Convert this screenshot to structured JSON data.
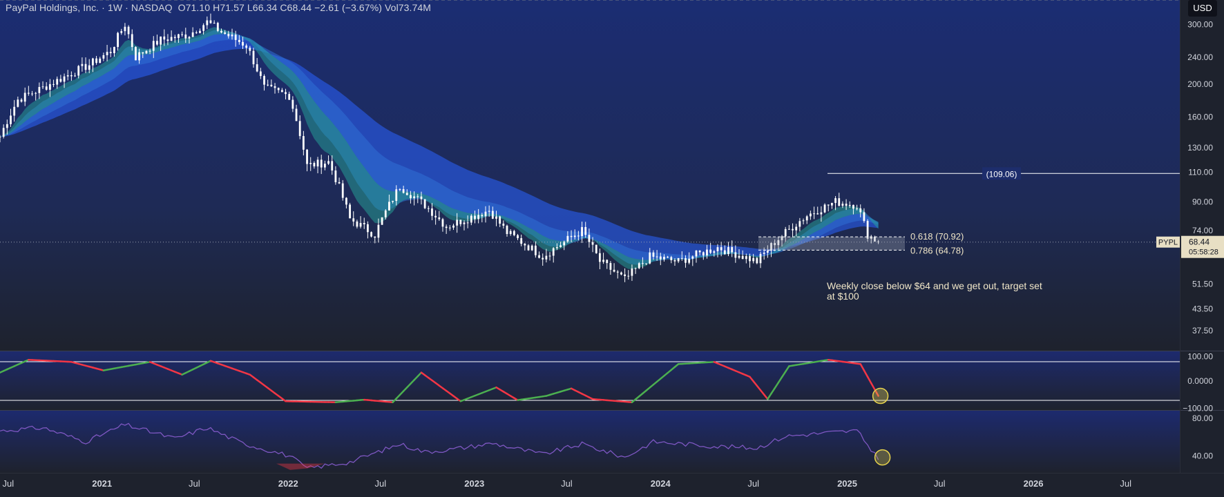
{
  "header": {
    "symbol_name": "PayPal Holdings, Inc.",
    "separator1": "·",
    "interval": "1W",
    "separator2": "·",
    "exchange": "NASDAQ",
    "open": "O71.10",
    "high": "H71.57",
    "low": "L66.34",
    "close": "C68.44",
    "change": "−2.61 (−3.67%)",
    "volume": "Vol73.74M",
    "currency": "USD"
  },
  "colors": {
    "bg_top": "#1b2d73",
    "bg_bottom": "#1e222d",
    "up_candle": "#ffffff",
    "down_candle": "#ffffff",
    "ribbon_fast": "#26a69a",
    "ribbon_slow": "#2962ff",
    "osc_up": "#4caf50",
    "osc_down": "#f23645",
    "rsi": "#7e57c2",
    "annotation_text": "#f0e6c8",
    "highlight_circle": "#e8d44d"
  },
  "price_scale": {
    "type": "log",
    "labels": [
      "300.00",
      "240.00",
      "200.00",
      "160.00",
      "130.00",
      "110.00",
      "90.00",
      "74.00",
      "51.50",
      "43.50",
      "37.50"
    ]
  },
  "current_price": {
    "ticker": "PYPL",
    "value": "68.44",
    "countdown": "05:58:28"
  },
  "time_axis": {
    "labels": [
      {
        "text": "Jul",
        "date": "2020-07-01",
        "bold": false
      },
      {
        "text": "2021",
        "date": "2021-01-01",
        "bold": true
      },
      {
        "text": "Jul",
        "date": "2021-07-01",
        "bold": false
      },
      {
        "text": "2022",
        "date": "2022-01-01",
        "bold": true
      },
      {
        "text": "Jul",
        "date": "2022-07-01",
        "bold": false
      },
      {
        "text": "2023",
        "date": "2023-01-01",
        "bold": true
      },
      {
        "text": "Jul",
        "date": "2023-07-01",
        "bold": false
      },
      {
        "text": "2024",
        "date": "2024-01-01",
        "bold": true
      },
      {
        "text": "Jul",
        "date": "2024-07-01",
        "bold": false
      },
      {
        "text": "2025",
        "date": "2025-01-01",
        "bold": true
      },
      {
        "text": "Jul",
        "date": "2025-07-01",
        "bold": false
      },
      {
        "text": "2026",
        "date": "2026-01-01",
        "bold": true
      },
      {
        "text": "Jul",
        "date": "2026-07-01",
        "bold": false
      }
    ]
  },
  "annotations": {
    "target_label": "(109.06)",
    "target_value": 109.06,
    "fib_618_label": "0.618 (70.92)",
    "fib_618_value": 70.92,
    "fib_786_label": "0.786 (64.78)",
    "fib_786_value": 64.78,
    "note_line1": "Weekly close below $64 and we get out, target set",
    "note_line2": "at $100"
  },
  "oscillator": {
    "labels": [
      "100.00",
      "0.0000",
      "−100.00"
    ],
    "upper": 100,
    "lower": -100
  },
  "rsi": {
    "labels": [
      "80.00",
      "40.00"
    ],
    "upper": 70,
    "mid": 50,
    "lower": 30
  },
  "chart_data": [
    {
      "type": "candlestick",
      "title": "PayPal Holdings, Inc. · 1W · NASDAQ",
      "ylim": [
        34,
        330
      ],
      "xlim": [
        "2020-06-15",
        "2026-10-15"
      ],
      "yscale": "log",
      "series": [
        {
          "name": "PYPL",
          "keypoints": [
            {
              "x": "2020-06-15",
              "y": 140
            },
            {
              "x": "2020-07-20",
              "y": 180
            },
            {
              "x": "2020-09-07",
              "y": 195
            },
            {
              "x": "2020-10-19",
              "y": 210
            },
            {
              "x": "2020-12-07",
              "y": 228
            },
            {
              "x": "2021-01-18",
              "y": 250
            },
            {
              "x": "2021-02-15",
              "y": 300
            },
            {
              "x": "2021-03-08",
              "y": 240
            },
            {
              "x": "2021-04-26",
              "y": 270
            },
            {
              "x": "2021-06-21",
              "y": 280
            },
            {
              "x": "2021-07-26",
              "y": 305
            },
            {
              "x": "2021-08-23",
              "y": 285
            },
            {
              "x": "2021-10-11",
              "y": 260
            },
            {
              "x": "2021-11-15",
              "y": 195
            },
            {
              "x": "2022-01-03",
              "y": 185
            },
            {
              "x": "2022-02-07",
              "y": 115
            },
            {
              "x": "2022-03-21",
              "y": 118
            },
            {
              "x": "2022-05-02",
              "y": 80
            },
            {
              "x": "2022-06-20",
              "y": 72
            },
            {
              "x": "2022-08-08",
              "y": 100
            },
            {
              "x": "2022-09-26",
              "y": 88
            },
            {
              "x": "2022-11-07",
              "y": 76
            },
            {
              "x": "2023-01-30",
              "y": 85
            },
            {
              "x": "2023-03-06",
              "y": 73
            },
            {
              "x": "2023-05-15",
              "y": 62
            },
            {
              "x": "2023-07-31",
              "y": 74
            },
            {
              "x": "2023-09-04",
              "y": 60
            },
            {
              "x": "2023-10-23",
              "y": 53
            },
            {
              "x": "2023-12-11",
              "y": 62
            },
            {
              "x": "2024-02-05",
              "y": 60
            },
            {
              "x": "2024-04-22",
              "y": 66
            },
            {
              "x": "2024-07-08",
              "y": 60
            },
            {
              "x": "2024-08-19",
              "y": 70
            },
            {
              "x": "2024-10-14",
              "y": 82
            },
            {
              "x": "2024-12-09",
              "y": 90
            },
            {
              "x": "2025-01-20",
              "y": 88
            },
            {
              "x": "2025-02-10",
              "y": 72
            },
            {
              "x": "2025-03-03",
              "y": 68.44
            }
          ]
        }
      ]
    },
    {
      "type": "line",
      "title": "",
      "ylim": [
        -130,
        130
      ],
      "series": [
        {
          "name": "",
          "keypoints": [
            {
              "x": "2020-06-15",
              "y": 40
            },
            {
              "x": "2020-08-10",
              "y": 100
            },
            {
              "x": "2020-11-02",
              "y": 90
            },
            {
              "x": "2021-01-04",
              "y": 50
            },
            {
              "x": "2021-04-05",
              "y": 90
            },
            {
              "x": "2021-06-07",
              "y": 30
            },
            {
              "x": "2021-08-02",
              "y": 95
            },
            {
              "x": "2021-10-18",
              "y": 30
            },
            {
              "x": "2021-12-27",
              "y": -95
            },
            {
              "x": "2022-04-04",
              "y": -100
            },
            {
              "x": "2022-05-30",
              "y": -88
            },
            {
              "x": "2022-07-25",
              "y": -100
            },
            {
              "x": "2022-09-19",
              "y": 40
            },
            {
              "x": "2022-12-05",
              "y": -95
            },
            {
              "x": "2023-02-13",
              "y": -30
            },
            {
              "x": "2023-03-27",
              "y": -90
            },
            {
              "x": "2023-05-22",
              "y": -70
            },
            {
              "x": "2023-07-10",
              "y": -35
            },
            {
              "x": "2023-08-21",
              "y": -85
            },
            {
              "x": "2023-11-06",
              "y": -100
            },
            {
              "x": "2024-02-05",
              "y": 80
            },
            {
              "x": "2024-04-15",
              "y": 90
            },
            {
              "x": "2024-06-24",
              "y": 20
            },
            {
              "x": "2024-07-29",
              "y": -85
            },
            {
              "x": "2024-09-09",
              "y": 70
            },
            {
              "x": "2024-11-25",
              "y": 100
            },
            {
              "x": "2025-01-27",
              "y": 80
            },
            {
              "x": "2025-03-03",
              "y": -70
            }
          ]
        }
      ]
    },
    {
      "type": "line",
      "title": "",
      "ylim": [
        20,
        95
      ],
      "series": [
        {
          "name": "",
          "keypoints": [
            {
              "x": "2020-06-15",
              "y": 72
            },
            {
              "x": "2020-09-07",
              "y": 76
            },
            {
              "x": "2020-11-30",
              "y": 58
            },
            {
              "x": "2021-02-15",
              "y": 80
            },
            {
              "x": "2021-05-24",
              "y": 62
            },
            {
              "x": "2021-07-26",
              "y": 76
            },
            {
              "x": "2021-10-04",
              "y": 56
            },
            {
              "x": "2022-01-03",
              "y": 40
            },
            {
              "x": "2022-02-07",
              "y": 24
            },
            {
              "x": "2022-05-02",
              "y": 32
            },
            {
              "x": "2022-08-08",
              "y": 55
            },
            {
              "x": "2022-09-26",
              "y": 45
            },
            {
              "x": "2022-11-14",
              "y": 48
            },
            {
              "x": "2023-02-06",
              "y": 56
            },
            {
              "x": "2023-05-15",
              "y": 42
            },
            {
              "x": "2023-07-31",
              "y": 55
            },
            {
              "x": "2023-10-23",
              "y": 38
            },
            {
              "x": "2023-12-18",
              "y": 58
            },
            {
              "x": "2024-04-22",
              "y": 52
            },
            {
              "x": "2024-07-08",
              "y": 50
            },
            {
              "x": "2024-09-02",
              "y": 65
            },
            {
              "x": "2024-12-02",
              "y": 70
            },
            {
              "x": "2025-01-20",
              "y": 72
            },
            {
              "x": "2025-02-24",
              "y": 42
            },
            {
              "x": "2025-03-03",
              "y": 38
            }
          ]
        }
      ]
    }
  ]
}
